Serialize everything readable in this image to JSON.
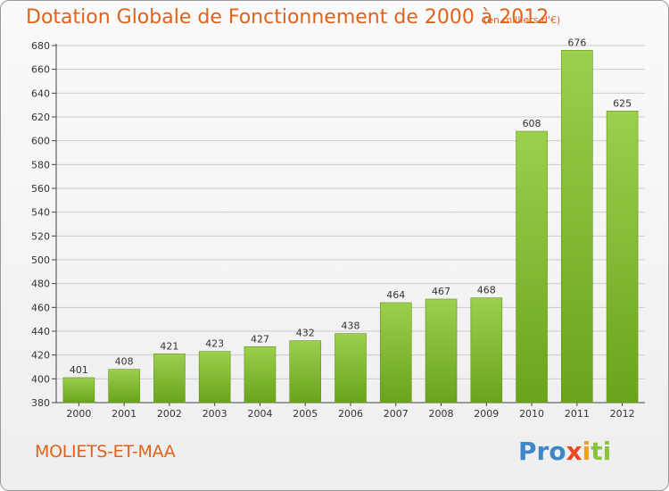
{
  "header": {
    "title": "Dotation Globale de Fonctionnement de 2000 à 2012",
    "subtitle": "(en milliers d'€)"
  },
  "footer": {
    "commune": "MOLIETS-ET-MAA",
    "logo": [
      "Pro",
      "x",
      "i",
      "ti"
    ]
  },
  "colors": {
    "title": "#e0621c",
    "bar_top": "#9ccf4c",
    "bar_bottom": "#6aa31c",
    "grid": "#cccccc"
  },
  "chart_data": {
    "type": "bar",
    "categories": [
      "2000",
      "2001",
      "2002",
      "2003",
      "2004",
      "2005",
      "2006",
      "2007",
      "2008",
      "2009",
      "2010",
      "2011",
      "2012"
    ],
    "values": [
      401,
      408,
      421,
      423,
      427,
      432,
      438,
      464,
      467,
      468,
      608,
      676,
      625
    ],
    "ylim": [
      380,
      680
    ],
    "yticks": [
      380,
      400,
      420,
      440,
      460,
      480,
      500,
      520,
      540,
      560,
      580,
      600,
      620,
      640,
      660,
      680
    ],
    "grid": true,
    "legend": "none"
  }
}
